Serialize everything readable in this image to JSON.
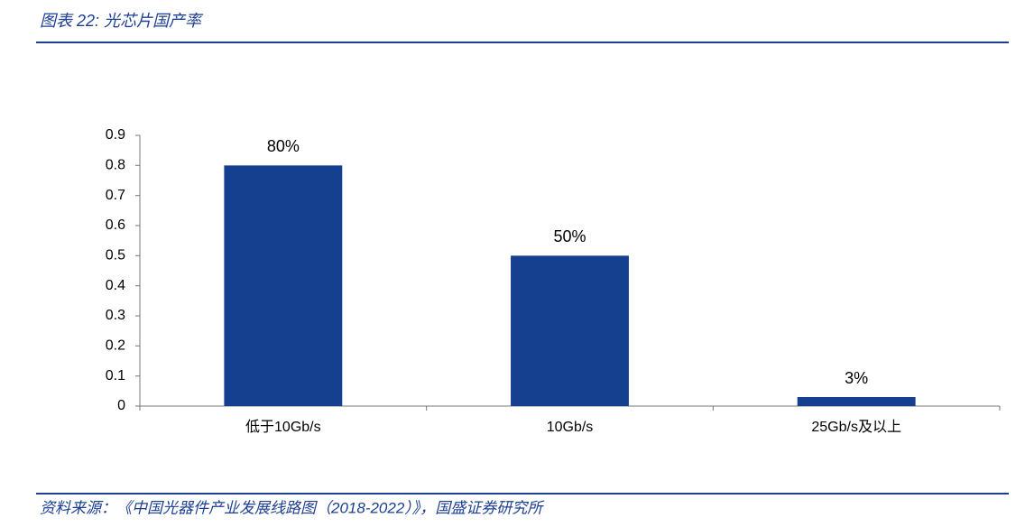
{
  "chart_data": {
    "type": "bar",
    "title": "图表 22:  光芯片国产率",
    "categories": [
      "低于10Gb/s",
      "10Gb/s",
      "25Gb/s及以上"
    ],
    "values": [
      0.8,
      0.5,
      0.03
    ],
    "value_labels": [
      "80%",
      "50%",
      "3%"
    ],
    "color": "#15408f",
    "ylim": [
      0,
      0.9
    ],
    "yticks": [
      0,
      0.1,
      0.2,
      0.3,
      0.4,
      0.5,
      0.6,
      0.7,
      0.8,
      0.9
    ],
    "grid": false,
    "source": "资料来源：《中国光器件产业发展线路图（2018-2022）》，国盛证券研究所"
  }
}
